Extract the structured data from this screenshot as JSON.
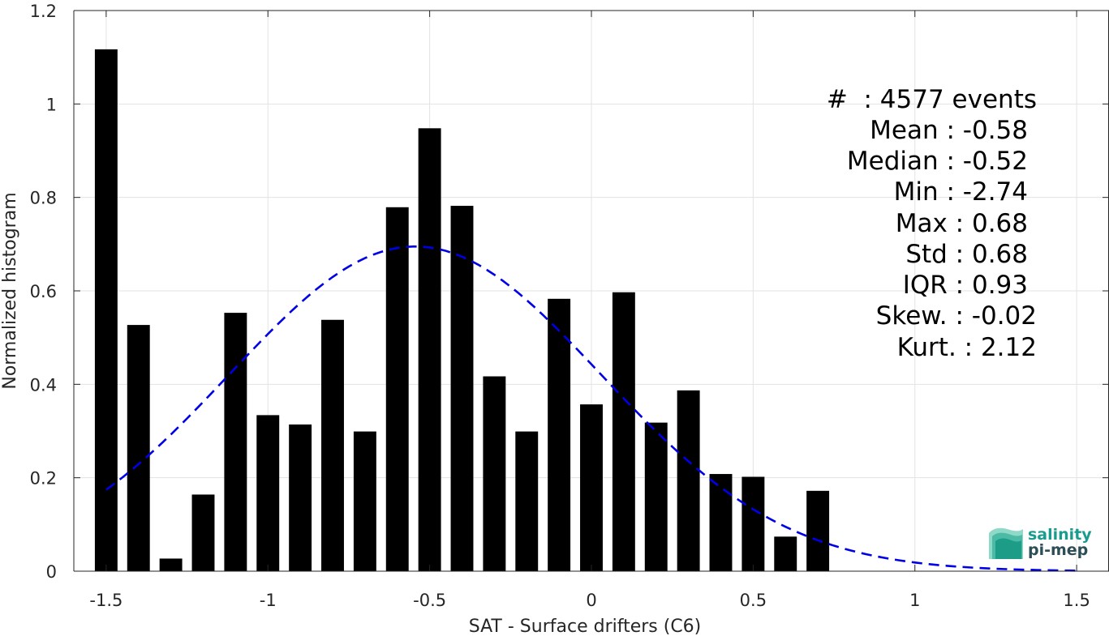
{
  "chart_data": {
    "type": "bar",
    "xlabel": "SAT - Surface drifters (C6)",
    "ylabel": "Normalized histogram",
    "xlim": [
      -1.6,
      1.6
    ],
    "ylim": [
      0,
      1.2
    ],
    "xticks": [
      -1.5,
      -1,
      -0.5,
      0,
      0.5,
      1,
      1.5
    ],
    "xtick_labels": [
      "-1.5",
      "-1",
      "-0.5",
      "0",
      "0.5",
      "1",
      "1.5"
    ],
    "yticks": [
      0,
      0.2,
      0.4,
      0.6,
      0.8,
      1,
      1.2
    ],
    "ytick_labels": [
      "0",
      "0.2",
      "0.4",
      "0.6",
      "0.8",
      "1",
      "1.2"
    ],
    "grid": true,
    "bar_color": "#000000",
    "bins": [
      {
        "x": -1.5,
        "value": 1.117
      },
      {
        "x": -1.4,
        "value": 0.527
      },
      {
        "x": -1.3,
        "value": 0.027
      },
      {
        "x": -1.2,
        "value": 0.164
      },
      {
        "x": -1.1,
        "value": 0.553
      },
      {
        "x": -1.0,
        "value": 0.334
      },
      {
        "x": -0.9,
        "value": 0.314
      },
      {
        "x": -0.8,
        "value": 0.538
      },
      {
        "x": -0.7,
        "value": 0.299
      },
      {
        "x": -0.6,
        "value": 0.779
      },
      {
        "x": -0.5,
        "value": 0.948
      },
      {
        "x": -0.4,
        "value": 0.782
      },
      {
        "x": -0.3,
        "value": 0.417
      },
      {
        "x": -0.2,
        "value": 0.299
      },
      {
        "x": -0.1,
        "value": 0.583
      },
      {
        "x": 0.0,
        "value": 0.357
      },
      {
        "x": 0.1,
        "value": 0.597
      },
      {
        "x": 0.2,
        "value": 0.318
      },
      {
        "x": 0.3,
        "value": 0.387
      },
      {
        "x": 0.4,
        "value": 0.208
      },
      {
        "x": 0.5,
        "value": 0.202
      },
      {
        "x": 0.6,
        "value": 0.074
      },
      {
        "x": 0.7,
        "value": 0.172
      }
    ],
    "fit_curve": {
      "type": "gaussian",
      "style": "dashed",
      "color": "#0000e6",
      "x_range": [
        -1.5,
        1.5
      ],
      "mean": -0.545,
      "std": 0.574,
      "peak": 0.695
    },
    "stats": [
      "#  : 4577 events",
      "Mean : -0.58",
      "Median : -0.52",
      "Min : -2.74",
      "Max : 0.68",
      "Std : 0.68",
      "IQR : 0.93",
      "Skew. : -0.02",
      "Kurt. : 2.12"
    ]
  },
  "logo": {
    "line1": "salinity",
    "line2": "pi-mep"
  }
}
